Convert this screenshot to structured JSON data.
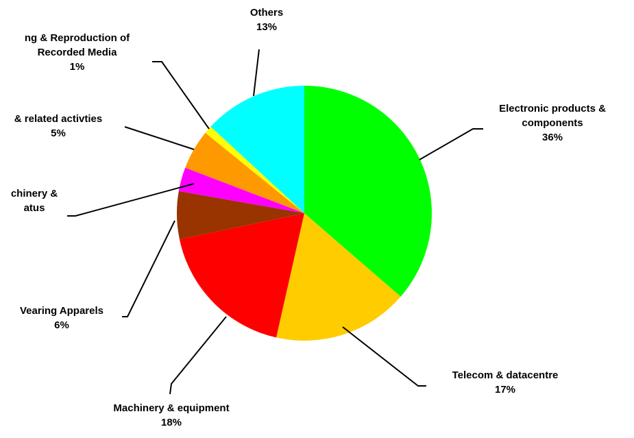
{
  "chart_data": {
    "type": "pie",
    "categories": [
      "Electronic products &\ncomponents",
      "Telecom & datacentre",
      "Machinery & equipment",
      "Vearing Apparels",
      "chinery &\natus",
      "& related activties",
      "ng & Reproduction of\nRecorded Media",
      "Others"
    ],
    "values": [
      36,
      17,
      18,
      6,
      3,
      5,
      1,
      13
    ],
    "value_labels": [
      "36%",
      "17%",
      "18%",
      "6%",
      null,
      "5%",
      "1%",
      "13%"
    ],
    "colors": [
      "#00ff00",
      "#ffcc00",
      "#ff0000",
      "#993300",
      "#ff00ff",
      "#ff9900",
      "#ffff00",
      "#00ffff"
    ]
  }
}
